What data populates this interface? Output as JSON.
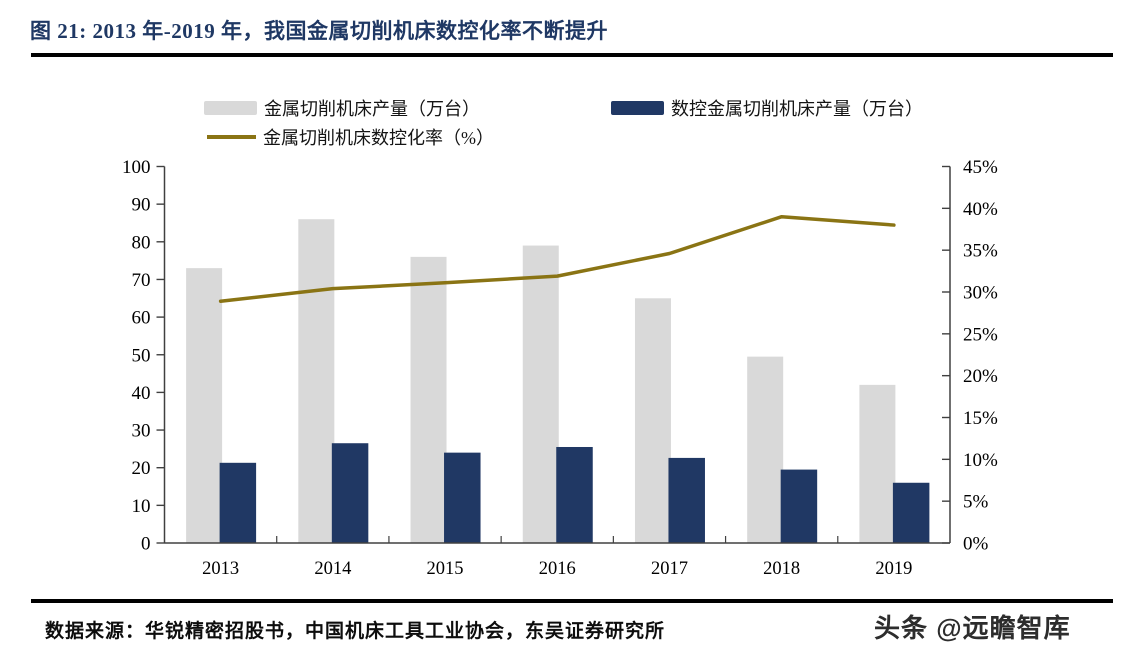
{
  "title": "图 21: 2013 年-2019 年，我国金属切削机床数控化率不断提升",
  "source": "数据来源：华锐精密招股书，中国机床工具工业协会，东吴证券研究所",
  "watermark": {
    "brand": "头条",
    "handle": "@远瞻智库"
  },
  "colors": {
    "title_navy": "#1f3864",
    "bar_gray": "#d9d9d9",
    "bar_navy": "#203864",
    "line_olive": "#8a7414",
    "axis": "#404040",
    "rule": "#000000"
  },
  "chart_data": {
    "type": "bar",
    "subtype": "bar+line combo, dual axis",
    "categories": [
      "2013",
      "2014",
      "2015",
      "2016",
      "2017",
      "2018",
      "2019"
    ],
    "series": [
      {
        "name": "金属切削机床产量（万台）",
        "type": "bar",
        "axis": "left",
        "color": "#d9d9d9",
        "values": [
          73,
          86,
          76,
          79,
          65,
          49.5,
          42
        ]
      },
      {
        "name": "数控金属切削机床产量（万台）",
        "type": "bar",
        "axis": "left",
        "color": "#203864",
        "values": [
          21.3,
          26.5,
          24,
          25.5,
          22.6,
          19.5,
          16
        ]
      },
      {
        "name": "金属切削机床数控化率（%）",
        "type": "line",
        "axis": "right",
        "color": "#8a7414",
        "values": [
          28.9,
          30.4,
          31.1,
          31.9,
          34.6,
          39,
          38
        ]
      }
    ],
    "left_axis": {
      "min": 0,
      "max": 100,
      "step": 10,
      "labels": [
        "0",
        "10",
        "20",
        "30",
        "40",
        "50",
        "60",
        "70",
        "80",
        "90",
        "100"
      ]
    },
    "right_axis": {
      "min": 0,
      "max": 45,
      "step": 5,
      "labels": [
        "0%",
        "5%",
        "10%",
        "15%",
        "20%",
        "25%",
        "30%",
        "35%",
        "40%",
        "45%"
      ]
    },
    "legend_position": "top",
    "grid": "off"
  }
}
